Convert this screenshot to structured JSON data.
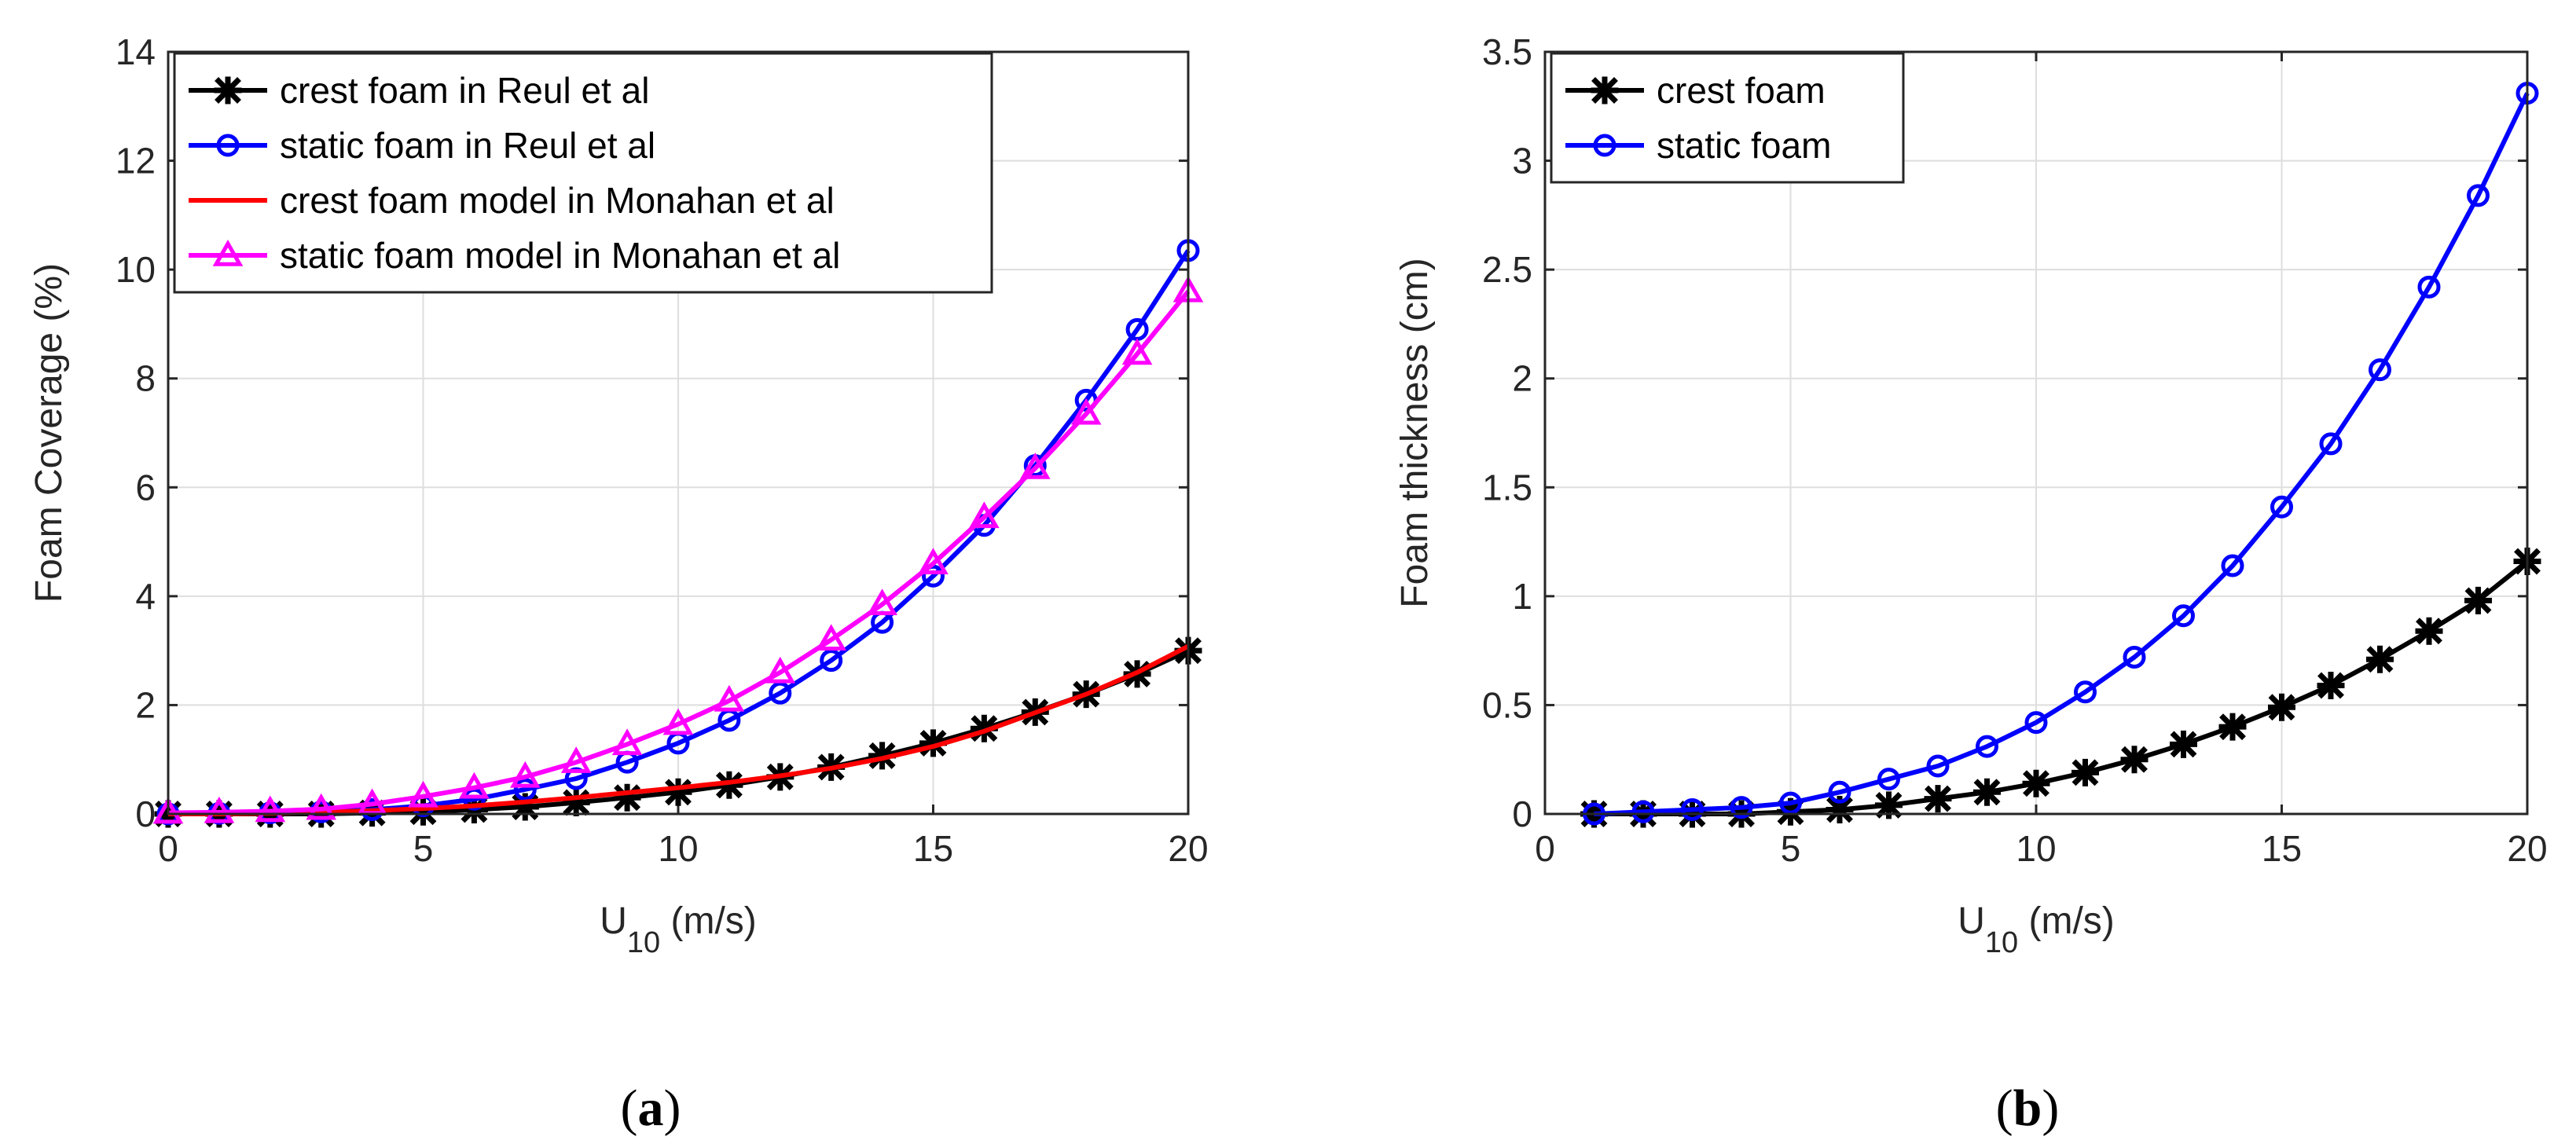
{
  "chart_data": [
    {
      "type": "line",
      "panel_label": "(a)",
      "panel_letter": "a",
      "xlabel": "U",
      "xlabel_sub": "10",
      "xlabel_unit": " (m/s)",
      "ylabel": "Foam Coverage (%)",
      "xlim": [
        0,
        20
      ],
      "ylim": [
        0,
        14
      ],
      "xticks": [
        0,
        5,
        10,
        15,
        20
      ],
      "yticks": [
        0,
        2,
        4,
        6,
        8,
        10,
        12,
        14
      ],
      "grid": true,
      "legend_position": "top-left",
      "series": [
        {
          "name": "crest foam in Reul et al",
          "color": "#000000",
          "marker": "star",
          "x": [
            0,
            1,
            2,
            3,
            4,
            5,
            6,
            7,
            8,
            9,
            10,
            11,
            12,
            13,
            14,
            15,
            16,
            17,
            18,
            19,
            20
          ],
          "y": [
            0,
            0,
            0,
            0,
            0.02,
            0.04,
            0.08,
            0.13,
            0.21,
            0.3,
            0.4,
            0.53,
            0.68,
            0.86,
            1.07,
            1.3,
            1.57,
            1.87,
            2.2,
            2.57,
            3.0
          ]
        },
        {
          "name": "static foam in Reul et al",
          "color": "#0000ff",
          "marker": "circle",
          "x": [
            0,
            1,
            2,
            3,
            4,
            5,
            6,
            7,
            8,
            9,
            10,
            11,
            12,
            13,
            14,
            15,
            16,
            17,
            18,
            19,
            20
          ],
          "y": [
            0,
            0.01,
            0.02,
            0.04,
            0.08,
            0.15,
            0.27,
            0.45,
            0.65,
            0.95,
            1.3,
            1.72,
            2.22,
            2.82,
            3.52,
            4.37,
            5.3,
            6.4,
            7.6,
            8.9,
            10.35
          ]
        },
        {
          "name": "crest foam model in Monahan et al",
          "color": "#ff0000",
          "marker": "none",
          "x": [
            0,
            1,
            2,
            3,
            4,
            5,
            6,
            7,
            8,
            9,
            10,
            11,
            12,
            13,
            14,
            15,
            16,
            17,
            18,
            19,
            20
          ],
          "y": [
            0,
            0,
            0.01,
            0.03,
            0.06,
            0.1,
            0.15,
            0.22,
            0.3,
            0.39,
            0.48,
            0.58,
            0.7,
            0.84,
            1.02,
            1.24,
            1.52,
            1.86,
            2.2,
            2.6,
            3.08
          ]
        },
        {
          "name": "static foam model in Monahan et al",
          "color": "#ff00ff",
          "marker": "triangle",
          "x": [
            0,
            1,
            2,
            3,
            4,
            5,
            6,
            7,
            8,
            9,
            10,
            11,
            12,
            13,
            14,
            15,
            16,
            17,
            18,
            19,
            20
          ],
          "y": [
            0.02,
            0.03,
            0.05,
            0.09,
            0.18,
            0.32,
            0.48,
            0.68,
            0.95,
            1.28,
            1.65,
            2.08,
            2.6,
            3.2,
            3.85,
            4.6,
            5.45,
            6.35,
            7.35,
            8.45,
            9.6
          ]
        }
      ]
    },
    {
      "type": "line",
      "panel_label": "(b)",
      "panel_letter": "b",
      "xlabel": "U",
      "xlabel_sub": "10",
      "xlabel_unit": " (m/s)",
      "ylabel": "Foam thickness (cm)",
      "xlim": [
        0,
        20
      ],
      "ylim": [
        0,
        3.5
      ],
      "xticks": [
        0,
        5,
        10,
        15,
        20
      ],
      "yticks": [
        0,
        0.5,
        1,
        1.5,
        2,
        2.5,
        3,
        3.5
      ],
      "grid": true,
      "legend_position": "top-left",
      "series": [
        {
          "name": "crest foam",
          "color": "#000000",
          "marker": "star",
          "x": [
            1,
            2,
            3,
            4,
            5,
            6,
            7,
            8,
            9,
            10,
            11,
            12,
            13,
            14,
            15,
            16,
            17,
            18,
            19,
            20
          ],
          "y": [
            0,
            0,
            0,
            0,
            0.01,
            0.02,
            0.04,
            0.07,
            0.1,
            0.14,
            0.19,
            0.25,
            0.32,
            0.4,
            0.49,
            0.59,
            0.71,
            0.84,
            0.98,
            1.16
          ]
        },
        {
          "name": "static foam",
          "color": "#0000ff",
          "marker": "circle",
          "x": [
            1,
            2,
            3,
            4,
            5,
            6,
            7,
            8,
            9,
            10,
            11,
            12,
            13,
            14,
            15,
            16,
            17,
            18,
            19,
            20
          ],
          "y": [
            0,
            0.01,
            0.02,
            0.03,
            0.05,
            0.1,
            0.16,
            0.22,
            0.31,
            0.42,
            0.56,
            0.72,
            0.91,
            1.14,
            1.41,
            1.7,
            2.04,
            2.42,
            2.84,
            3.31
          ]
        }
      ]
    }
  ]
}
